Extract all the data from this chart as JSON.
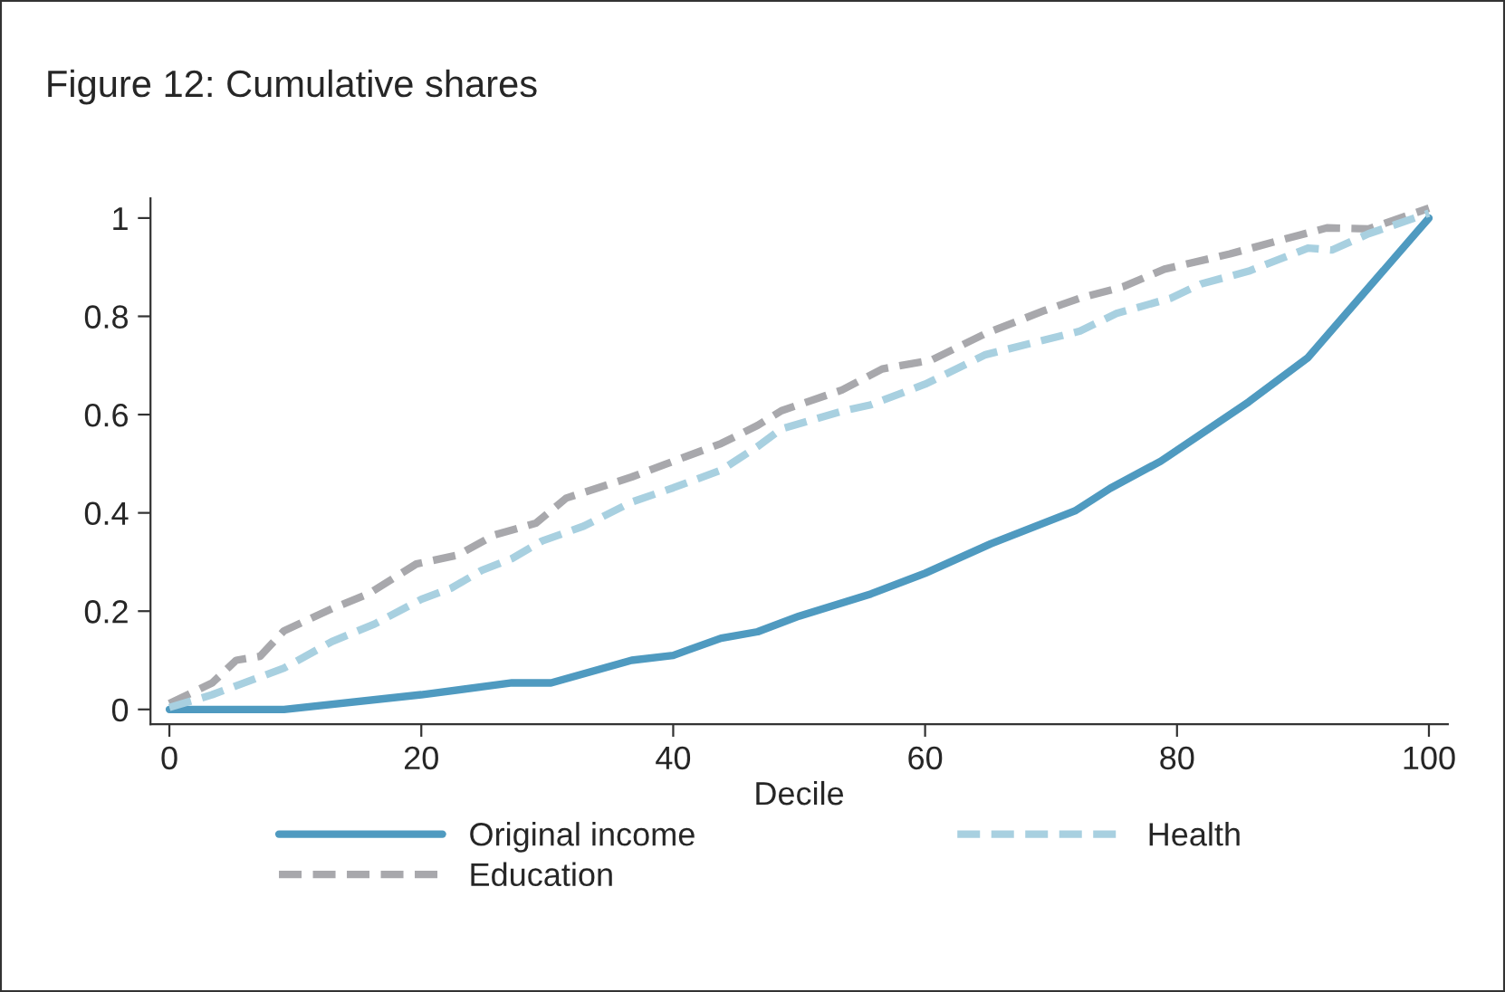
{
  "chart_data": {
    "type": "line",
    "title": "Figure 12: Cumulative shares",
    "xlabel": "Decile",
    "xlim": [
      -1.5,
      101.5
    ],
    "ylim": [
      -0.03,
      1.04
    ],
    "xticks": [
      0,
      20,
      40,
      60,
      80,
      100
    ],
    "yticks": [
      0,
      0.2,
      0.4,
      0.6,
      0.8,
      1
    ],
    "grid": false,
    "legend": "bottom",
    "marker": "none",
    "series": [
      {
        "name": "Original income",
        "color": "#4f9ac0",
        "line_style": "solid",
        "x": [
          0,
          9.1,
          20,
          27.2,
          30.3,
          36.7,
          40,
          43.8,
          46.7,
          50,
          55.7,
          60,
          65.2,
          71.9,
          74.7,
          78.7,
          85.7,
          90.4,
          100
        ],
        "values": [
          0,
          0,
          0.03,
          0.054,
          0.054,
          0.1,
          0.11,
          0.145,
          0.158,
          0.19,
          0.235,
          0.277,
          0.337,
          0.404,
          0.45,
          0.505,
          0.626,
          0.716,
          1.0
        ]
      },
      {
        "name": "Education",
        "color": "#a8a8ac",
        "line_style": "dashed",
        "x": [
          0,
          3.4,
          5.3,
          7.2,
          9.1,
          12.9,
          15.8,
          19.6,
          22.9,
          25.8,
          29.1,
          31.5,
          36.7,
          40,
          43.8,
          46.7,
          48.6,
          53.4,
          56.6,
          60.5,
          64.8,
          69.5,
          72.3,
          75.7,
          79,
          84.2,
          88.5,
          91.9,
          95.2,
          100
        ],
        "values": [
          0.012,
          0.054,
          0.1,
          0.108,
          0.16,
          0.205,
          0.235,
          0.296,
          0.314,
          0.355,
          0.379,
          0.43,
          0.473,
          0.505,
          0.541,
          0.578,
          0.608,
          0.65,
          0.693,
          0.711,
          0.765,
          0.812,
          0.837,
          0.86,
          0.896,
          0.927,
          0.957,
          0.98,
          0.978,
          1.02
        ]
      },
      {
        "name": "Health",
        "color": "#a8d0e0",
        "line_style": "dashed",
        "x": [
          0,
          3.4,
          9.1,
          12.9,
          16.3,
          20,
          22.4,
          24.8,
          27.2,
          29.6,
          32.9,
          36.7,
          40,
          43.8,
          46.7,
          48.6,
          53.4,
          55.7,
          60,
          64.8,
          72.3,
          75.2,
          79.5,
          81.9,
          85.7,
          90.4,
          92.3,
          95.2,
          100
        ],
        "values": [
          0.004,
          0.03,
          0.084,
          0.138,
          0.174,
          0.224,
          0.247,
          0.283,
          0.307,
          0.343,
          0.373,
          0.422,
          0.451,
          0.487,
          0.535,
          0.571,
          0.607,
          0.62,
          0.662,
          0.722,
          0.77,
          0.806,
          0.837,
          0.866,
          0.892,
          0.939,
          0.935,
          0.968,
          1.01
        ]
      }
    ]
  }
}
